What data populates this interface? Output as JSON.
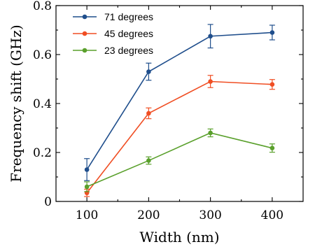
{
  "chart_data": {
    "type": "line",
    "title": "",
    "xlabel": "Width (nm)",
    "ylabel": "Frequency shift (GHz)",
    "x": [
      100,
      200,
      300,
      400
    ],
    "xticks": [
      "100",
      "200",
      "300",
      "400"
    ],
    "yticks": [
      "0",
      "0.2",
      "0.4",
      "0.6",
      "0.8"
    ],
    "xlim": [
      50,
      450
    ],
    "ylim": [
      0,
      0.8
    ],
    "grid": false,
    "legend_position": "top-left",
    "series": [
      {
        "name": "71 degrees",
        "color": "#1f4e8c",
        "values": [
          0.13,
          0.53,
          0.675,
          0.69
        ],
        "errors": [
          0.045,
          0.035,
          0.048,
          0.03
        ]
      },
      {
        "name": "45 degrees",
        "color": "#f04e23",
        "values": [
          0.035,
          0.36,
          0.49,
          0.478
        ],
        "errors": [
          0.015,
          0.022,
          0.025,
          0.02
        ]
      },
      {
        "name": "23 degrees",
        "color": "#5aa02c",
        "values": [
          0.06,
          0.167,
          0.28,
          0.218
        ],
        "errors": [
          0.02,
          0.015,
          0.016,
          0.017
        ]
      }
    ]
  }
}
